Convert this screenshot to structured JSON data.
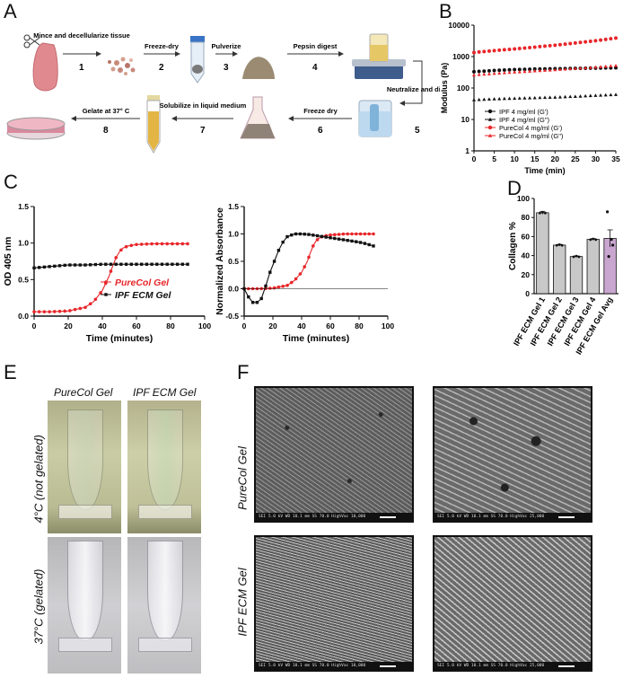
{
  "panels": {
    "a": "A",
    "b": "B",
    "c": "C",
    "d": "D",
    "e": "E",
    "f": "F"
  },
  "workflow": {
    "steps": [
      {
        "num": "1",
        "label": "Mince and decellularize tissue"
      },
      {
        "num": "2",
        "label": "Freeze-dry"
      },
      {
        "num": "3",
        "label": "Pulverize"
      },
      {
        "num": "4",
        "label": "Pepsin digest"
      },
      {
        "num": "5",
        "label": "Neutralize and dialyze"
      },
      {
        "num": "6",
        "label": "Freeze dry"
      },
      {
        "num": "7",
        "label": "Solubilize in liquid medium"
      },
      {
        "num": "8",
        "label": "Gelate at 37° C"
      }
    ]
  },
  "chart_data": [
    {
      "id": "B",
      "type": "scatter",
      "xlabel": "Time (min)",
      "ylabel": "Modulus (Pa)",
      "xlim": [
        0,
        35
      ],
      "ylim": [
        1,
        10000
      ],
      "yscale": "log",
      "xticks": [
        "0",
        "5",
        "10",
        "15",
        "20",
        "25",
        "30",
        "35"
      ],
      "yticks": [
        "1",
        "10",
        "100",
        "1000",
        "10000"
      ],
      "legend_position": "bottom-right",
      "series": [
        {
          "name": "IPF 4 mg/ml (G')",
          "color": "#111111",
          "marker": "circle",
          "x": [
            0,
            5,
            10,
            15,
            20,
            25,
            30,
            35
          ],
          "values": [
            330,
            360,
            385,
            400,
            410,
            420,
            430,
            440
          ]
        },
        {
          "name": "IPF 4 mg/ml (G\")",
          "color": "#111111",
          "marker": "triangle",
          "x": [
            0,
            5,
            10,
            15,
            20,
            25,
            30,
            35
          ],
          "values": [
            42,
            45,
            47,
            49,
            51,
            54,
            58,
            62
          ]
        },
        {
          "name": "PureCol 4 mg/ml (G')",
          "color": "#e8262a",
          "marker": "circle",
          "x": [
            0,
            5,
            10,
            15,
            20,
            25,
            30,
            35
          ],
          "values": [
            1350,
            1550,
            1750,
            2000,
            2300,
            2700,
            3200,
            3900
          ]
        },
        {
          "name": "PureCol 4 mg/ml (G\")",
          "color": "#e8262a",
          "marker": "triangle",
          "x": [
            0,
            5,
            10,
            15,
            20,
            25,
            30,
            35
          ],
          "values": [
            260,
            290,
            320,
            350,
            380,
            420,
            460,
            520
          ]
        }
      ]
    },
    {
      "id": "C1",
      "type": "line",
      "xlabel": "Time (minutes)",
      "ylabel": "OD 405 nm",
      "xlim": [
        0,
        100
      ],
      "ylim": [
        0,
        1.5
      ],
      "xticks": [
        "0",
        "20",
        "40",
        "60",
        "80",
        "100"
      ],
      "yticks": [
        "0.0",
        "0.5",
        "1.0",
        "1.5"
      ],
      "legend_position": "bottom-right",
      "series": [
        {
          "name": "PureCol Gel",
          "color": "#e8262a",
          "x": [
            0,
            10,
            20,
            30,
            35,
            40,
            44,
            46,
            48,
            50,
            52,
            55,
            60,
            70,
            80,
            90
          ],
          "values": [
            0.06,
            0.06,
            0.07,
            0.12,
            0.2,
            0.35,
            0.55,
            0.68,
            0.8,
            0.88,
            0.93,
            0.96,
            0.98,
            0.99,
            0.99,
            0.99
          ]
        },
        {
          "name": "IPF ECM Gel",
          "color": "#111111",
          "x": [
            0,
            10,
            20,
            30,
            40,
            50,
            60,
            70,
            80,
            90
          ],
          "values": [
            0.66,
            0.68,
            0.7,
            0.7,
            0.71,
            0.71,
            0.71,
            0.71,
            0.71,
            0.71
          ]
        }
      ]
    },
    {
      "id": "C2",
      "type": "line",
      "xlabel": "Time (minutes)",
      "ylabel": "Normalized Absorbance",
      "xlim": [
        0,
        100
      ],
      "ylim": [
        -0.5,
        1.5
      ],
      "xticks": [
        "0",
        "20",
        "40",
        "60",
        "80",
        "100"
      ],
      "yticks": [
        "-0.5",
        "0.0",
        "0.5",
        "1.0",
        "1.5"
      ],
      "series": [
        {
          "name": "PureCol Gel",
          "color": "#e8262a",
          "x": [
            0,
            10,
            20,
            30,
            35,
            40,
            44,
            46,
            48,
            50,
            52,
            55,
            60,
            70,
            80,
            90
          ],
          "values": [
            0,
            0,
            0.01,
            0.06,
            0.15,
            0.3,
            0.5,
            0.65,
            0.78,
            0.87,
            0.92,
            0.96,
            0.98,
            1.0,
            1.0,
            1.0
          ]
        },
        {
          "name": "IPF ECM Gel",
          "color": "#111111",
          "x": [
            0,
            3,
            6,
            9,
            12,
            15,
            18,
            21,
            24,
            27,
            30,
            35,
            40,
            45,
            50,
            55,
            60,
            65,
            70,
            75,
            80,
            85,
            90
          ],
          "values": [
            0,
            -0.15,
            -0.25,
            -0.25,
            -0.18,
            0.05,
            0.3,
            0.5,
            0.7,
            0.85,
            0.95,
            1.0,
            1.0,
            0.99,
            0.97,
            0.95,
            0.93,
            0.91,
            0.89,
            0.87,
            0.85,
            0.82,
            0.78
          ]
        }
      ]
    },
    {
      "id": "D",
      "type": "bar",
      "ylabel": "Collagen %",
      "ylim": [
        0,
        100
      ],
      "yticks": [
        "0",
        "20",
        "40",
        "60",
        "80",
        "100"
      ],
      "categories": [
        "IPF ECM Gel 1",
        "IPF ECM Gel 2",
        "IPF ECM Gel 3",
        "IPF ECM Gel 4",
        "IPF ECM Gel Avg"
      ],
      "values": [
        85,
        51,
        39,
        57,
        58
      ],
      "errors": [
        1.5,
        0.8,
        0.6,
        0.8,
        9
      ],
      "colors": [
        "#c8c8c8",
        "#c8c8c8",
        "#c8c8c8",
        "#c8c8c8",
        "#c9a6d0"
      ],
      "avg_points": [
        86,
        51,
        39,
        57
      ]
    }
  ],
  "legend_c1": {
    "purecol": "PureCol Gel",
    "ipf": "IPF ECM Gel"
  },
  "panel_e": {
    "col1": "PureCol Gel",
    "col2": "IPF ECM Gel",
    "row1": "4°C (not gelated)",
    "row2": "37°C (gelated)"
  },
  "panel_f": {
    "row1": "PureCol Gel",
    "row2": "IPF ECM Gel"
  },
  "colors": {
    "red": "#e8262a",
    "black": "#111111",
    "bar_gray": "#c8c8c8",
    "bar_purple": "#c9a6d0"
  }
}
